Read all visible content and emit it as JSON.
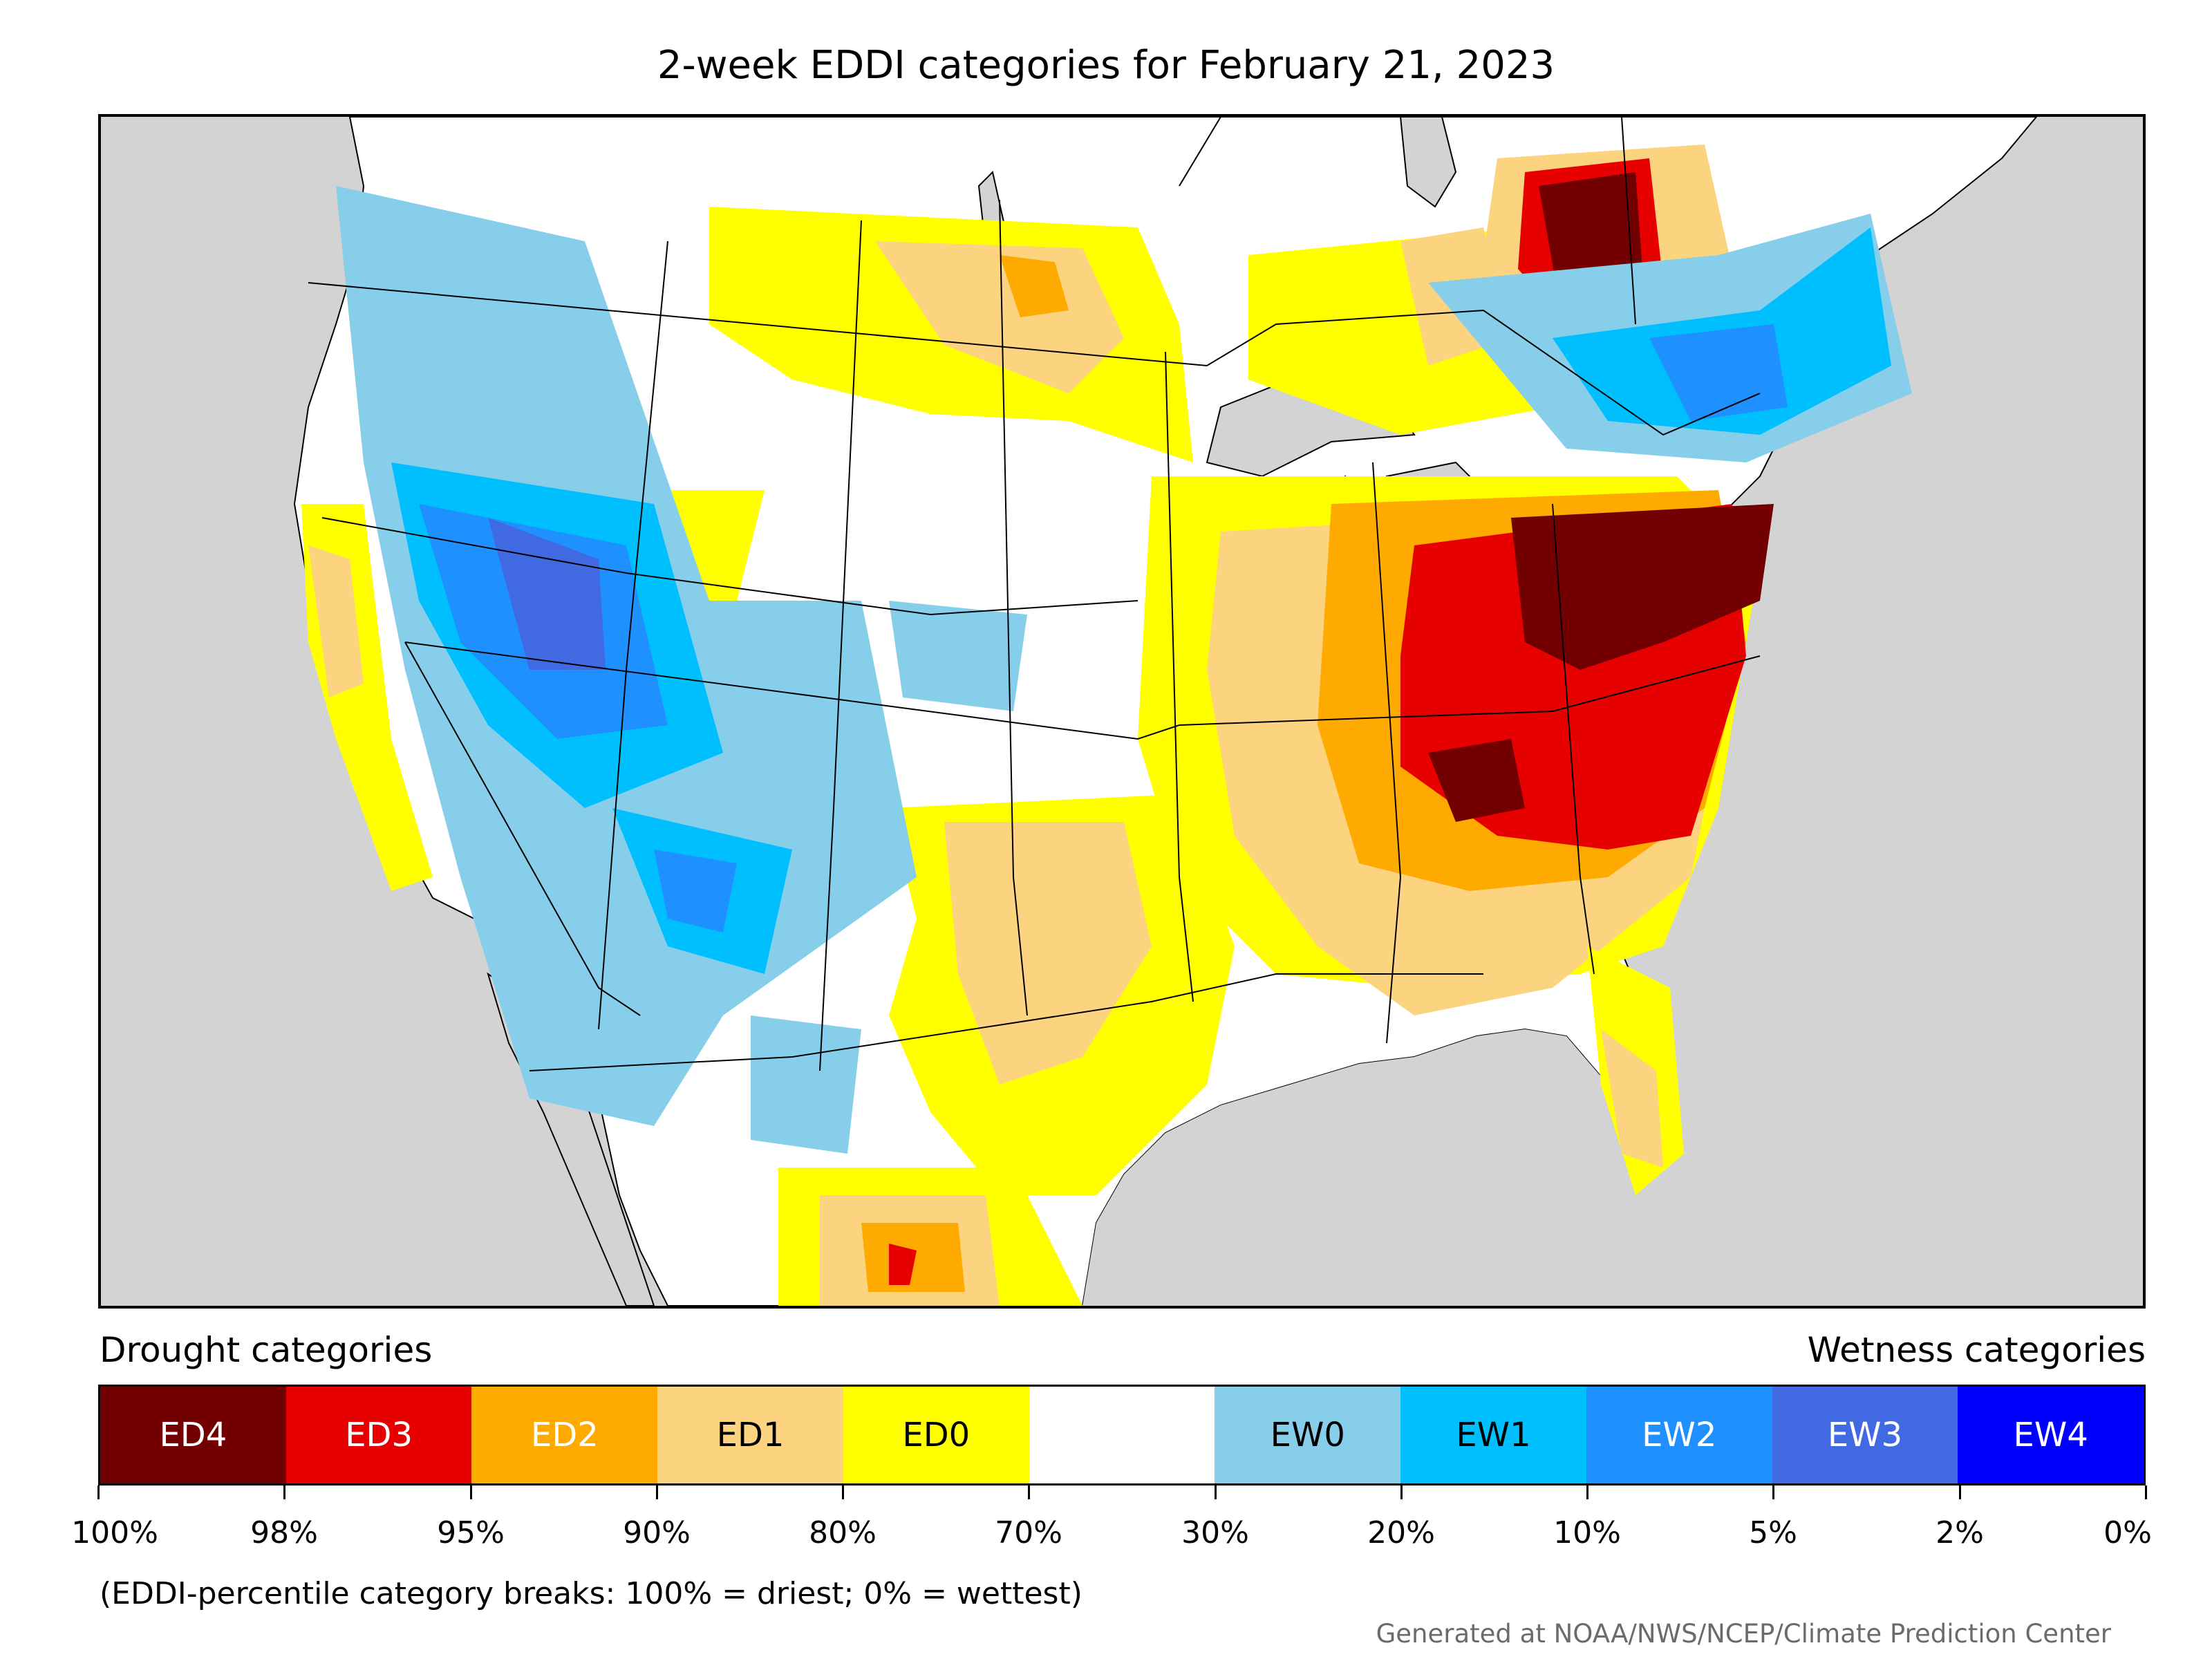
{
  "title": "2-week EDDI categories for February 21, 2023",
  "legend": {
    "drought_heading": "Drought categories",
    "wetness_heading": "Wetness categories",
    "categories": [
      {
        "label": "ED4",
        "color": "#730000",
        "text_color": "#ffffff"
      },
      {
        "label": "ED3",
        "color": "#e60000",
        "text_color": "#ffffff"
      },
      {
        "label": "ED2",
        "color": "#ffaa00",
        "text_color": "#ffffff"
      },
      {
        "label": "ED1",
        "color": "#fcd37f",
        "text_color": "#000000"
      },
      {
        "label": "ED0",
        "color": "#ffff00",
        "text_color": "#000000"
      },
      {
        "label": "",
        "color": "#ffffff",
        "text_color": "#000000"
      },
      {
        "label": "EW0",
        "color": "#87ceeb",
        "text_color": "#000000"
      },
      {
        "label": "EW1",
        "color": "#00bfff",
        "text_color": "#000000"
      },
      {
        "label": "EW2",
        "color": "#1e90ff",
        "text_color": "#ffffff"
      },
      {
        "label": "EW3",
        "color": "#4169e1",
        "text_color": "#ffffff"
      },
      {
        "label": "EW4",
        "color": "#0000ff",
        "text_color": "#ffffff"
      }
    ],
    "breaks": [
      "100%",
      "98%",
      "95%",
      "90%",
      "80%",
      "70%",
      "30%",
      "20%",
      "10%",
      "5%",
      "2%",
      "0%"
    ]
  },
  "note": "(EDDI-percentile category breaks: 100% = driest; 0% = wettest)",
  "credit": "Generated at NOAA/NWS/NCEP/Climate Prediction Center",
  "map_colors": {
    "ocean_and_outside": "#d3d3d3",
    "land_background": "#ffffff",
    "borders": "#000000"
  }
}
